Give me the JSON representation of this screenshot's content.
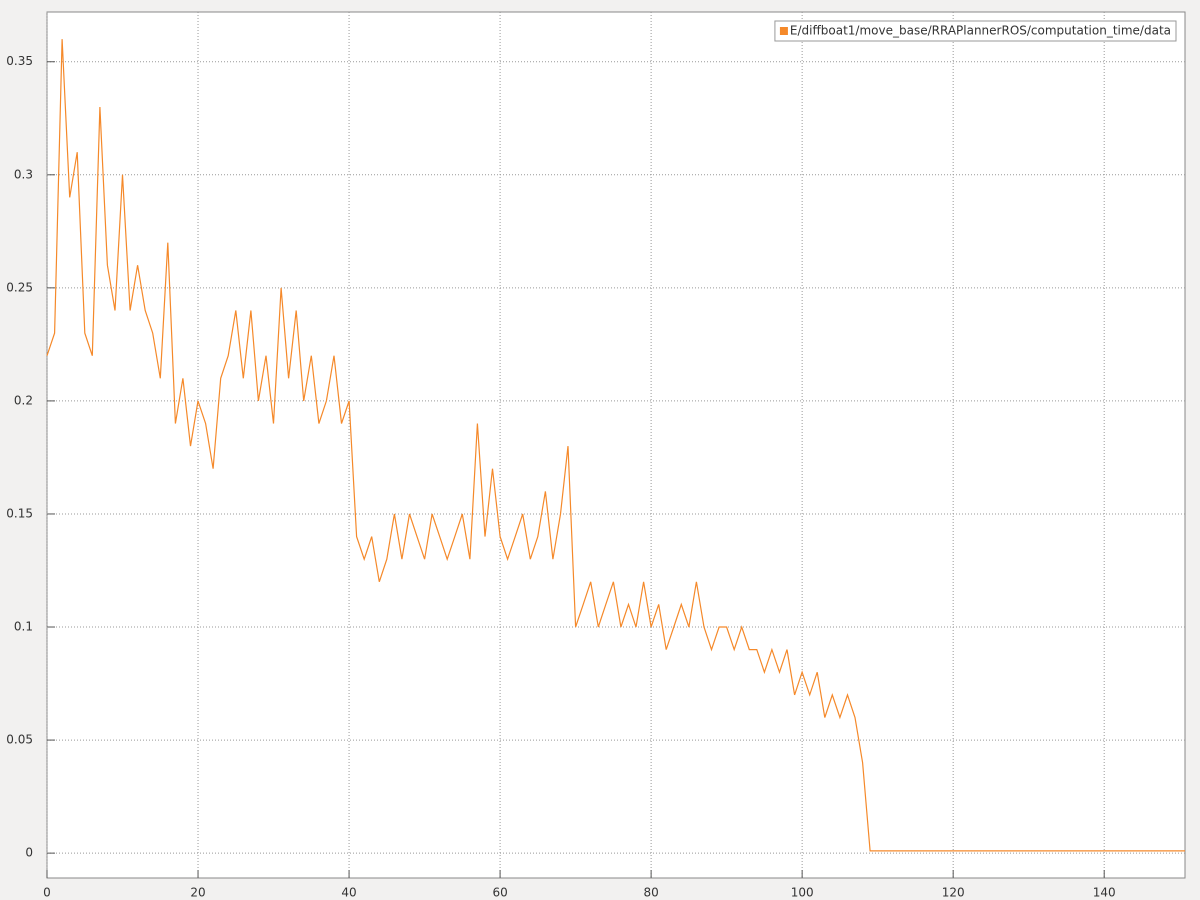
{
  "chart_data": {
    "type": "line",
    "x": [
      0,
      1,
      2,
      3,
      4,
      5,
      6,
      7,
      8,
      9,
      10,
      11,
      12,
      13,
      14,
      15,
      16,
      17,
      18,
      19,
      20,
      21,
      22,
      23,
      24,
      25,
      26,
      27,
      28,
      29,
      30,
      31,
      32,
      33,
      34,
      35,
      36,
      37,
      38,
      39,
      40,
      41,
      42,
      43,
      44,
      45,
      46,
      47,
      48,
      49,
      50,
      51,
      52,
      53,
      54,
      55,
      56,
      57,
      58,
      59,
      60,
      61,
      62,
      63,
      64,
      65,
      66,
      67,
      68,
      69,
      70,
      71,
      72,
      73,
      74,
      75,
      76,
      77,
      78,
      79,
      80,
      81,
      82,
      83,
      84,
      85,
      86,
      87,
      88,
      89,
      90,
      91,
      92,
      93,
      94,
      95,
      96,
      97,
      98,
      99,
      100,
      101,
      102,
      103,
      104,
      105,
      106,
      107,
      108,
      109,
      150.7
    ],
    "series": [
      {
        "name": "E/diffboat1/move_base/RRAPlannerROS/computation_time/data",
        "color": "#f5892a",
        "values": [
          0.22,
          0.23,
          0.36,
          0.29,
          0.31,
          0.23,
          0.22,
          0.33,
          0.26,
          0.24,
          0.3,
          0.24,
          0.26,
          0.24,
          0.23,
          0.21,
          0.27,
          0.19,
          0.21,
          0.18,
          0.2,
          0.19,
          0.17,
          0.21,
          0.22,
          0.24,
          0.21,
          0.24,
          0.2,
          0.22,
          0.19,
          0.25,
          0.21,
          0.24,
          0.2,
          0.22,
          0.19,
          0.2,
          0.22,
          0.19,
          0.2,
          0.14,
          0.13,
          0.14,
          0.12,
          0.13,
          0.15,
          0.13,
          0.15,
          0.14,
          0.13,
          0.15,
          0.14,
          0.13,
          0.14,
          0.15,
          0.13,
          0.19,
          0.14,
          0.17,
          0.14,
          0.13,
          0.14,
          0.15,
          0.13,
          0.14,
          0.16,
          0.13,
          0.15,
          0.18,
          0.1,
          0.11,
          0.12,
          0.1,
          0.11,
          0.12,
          0.1,
          0.11,
          0.1,
          0.12,
          0.1,
          0.11,
          0.09,
          0.1,
          0.11,
          0.1,
          0.12,
          0.1,
          0.09,
          0.1,
          0.1,
          0.09,
          0.1,
          0.09,
          0.09,
          0.08,
          0.09,
          0.08,
          0.09,
          0.07,
          0.08,
          0.07,
          0.08,
          0.06,
          0.07,
          0.06,
          0.07,
          0.06,
          0.04,
          0.001,
          0.001
        ]
      }
    ],
    "xlim": [
      0,
      150.7
    ],
    "ylim": [
      -0.011,
      0.372
    ],
    "xticks": [
      0,
      20,
      40,
      60,
      80,
      100,
      120,
      140
    ],
    "yticks": [
      0,
      0.05,
      0.1,
      0.15,
      0.2,
      0.25,
      0.3,
      0.35
    ],
    "grid": true,
    "legend": "top-right"
  }
}
